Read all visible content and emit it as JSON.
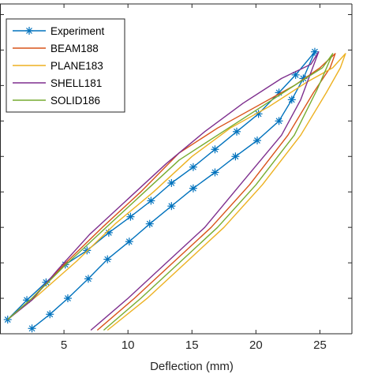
{
  "chart_data": {
    "type": "line",
    "title": "",
    "xlabel": "Deflection (mm)",
    "ylabel": "",
    "xlim": [
      0,
      27.5
    ],
    "ylim": [
      0,
      9.3
    ],
    "xticks": [
      5,
      10,
      15,
      20,
      25
    ],
    "xtick_labels": [
      "5",
      "10",
      "15",
      "20",
      "25"
    ],
    "yticks": [
      0,
      1,
      2,
      3,
      4,
      5,
      6,
      7,
      8,
      9
    ],
    "grid": false,
    "legend_position": "top-left",
    "series": [
      {
        "name": "Experiment",
        "color": "#0072BD",
        "marker": "asterisk",
        "x": [
          2.5,
          3.9,
          5.3,
          6.9,
          8.4,
          10.1,
          11.7,
          13.4,
          15.1,
          16.8,
          18.4,
          20.1,
          21.8,
          22.8,
          23.7,
          24.6,
          23.1,
          21.8,
          20.2,
          18.5,
          16.8,
          15.1,
          13.4,
          11.8,
          10.2,
          8.5,
          6.8,
          5.1,
          3.6,
          2.1,
          0.6
        ],
        "y": [
          0.15,
          0.55,
          1.0,
          1.55,
          2.1,
          2.6,
          3.1,
          3.6,
          4.1,
          4.55,
          5.0,
          5.45,
          6.0,
          6.6,
          7.2,
          7.95,
          7.3,
          6.8,
          6.2,
          5.7,
          5.2,
          4.7,
          4.25,
          3.75,
          3.3,
          2.85,
          2.35,
          1.95,
          1.45,
          0.95,
          0.4
        ]
      },
      {
        "name": "BEAM188",
        "color": "#D95319",
        "x": [
          7.6,
          10.5,
          13.5,
          16.5,
          19.5,
          22.5,
          24.5,
          25.8,
          26.2,
          25.0,
          23.0,
          20.0,
          17.0,
          14.0,
          11.0,
          8.0,
          5.0,
          2.5,
          0.6
        ],
        "y": [
          0.1,
          1.0,
          2.0,
          3.0,
          4.2,
          5.6,
          6.8,
          7.5,
          7.9,
          7.5,
          7.0,
          6.4,
          5.8,
          5.1,
          4.0,
          3.0,
          1.95,
          1.0,
          0.4
        ]
      },
      {
        "name": "PLANE183",
        "color": "#EDB120",
        "x": [
          8.4,
          11.5,
          14.5,
          17.5,
          20.5,
          23.5,
          25.5,
          26.6,
          27.0,
          26.0,
          24.0,
          21.0,
          18.0,
          15.0,
          12.0,
          9.0,
          6.0,
          3.0,
          0.6
        ],
        "y": [
          0.1,
          1.0,
          2.0,
          3.0,
          4.2,
          5.6,
          6.8,
          7.5,
          7.9,
          7.5,
          7.1,
          6.4,
          5.8,
          5.0,
          4.0,
          3.1,
          2.05,
          1.1,
          0.4
        ]
      },
      {
        "name": "SHELL181",
        "color": "#7E2F8E",
        "x": [
          7.1,
          10.0,
          13.0,
          16.0,
          19.0,
          22.0,
          23.5,
          24.9,
          24.3,
          22.0,
          19.0,
          16.0,
          13.0,
          10.0,
          7.0,
          4.5,
          2.5,
          0.6
        ],
        "y": [
          0.1,
          1.0,
          2.0,
          3.0,
          4.3,
          5.6,
          6.6,
          7.95,
          7.6,
          7.2,
          6.5,
          5.7,
          4.8,
          3.8,
          2.8,
          1.8,
          0.95,
          0.4
        ]
      },
      {
        "name": "SOLID186",
        "color": "#77AC30",
        "x": [
          8.1,
          11.0,
          14.0,
          17.0,
          20.0,
          23.0,
          24.8,
          26.0,
          25.2,
          23.0,
          20.0,
          17.0,
          14.0,
          11.0,
          8.0,
          5.0,
          2.5,
          0.6
        ],
        "y": [
          0.1,
          1.0,
          2.0,
          3.0,
          4.2,
          5.6,
          6.9,
          7.9,
          7.5,
          7.0,
          6.3,
          5.6,
          4.9,
          3.9,
          2.9,
          1.9,
          1.0,
          0.4
        ]
      }
    ]
  }
}
